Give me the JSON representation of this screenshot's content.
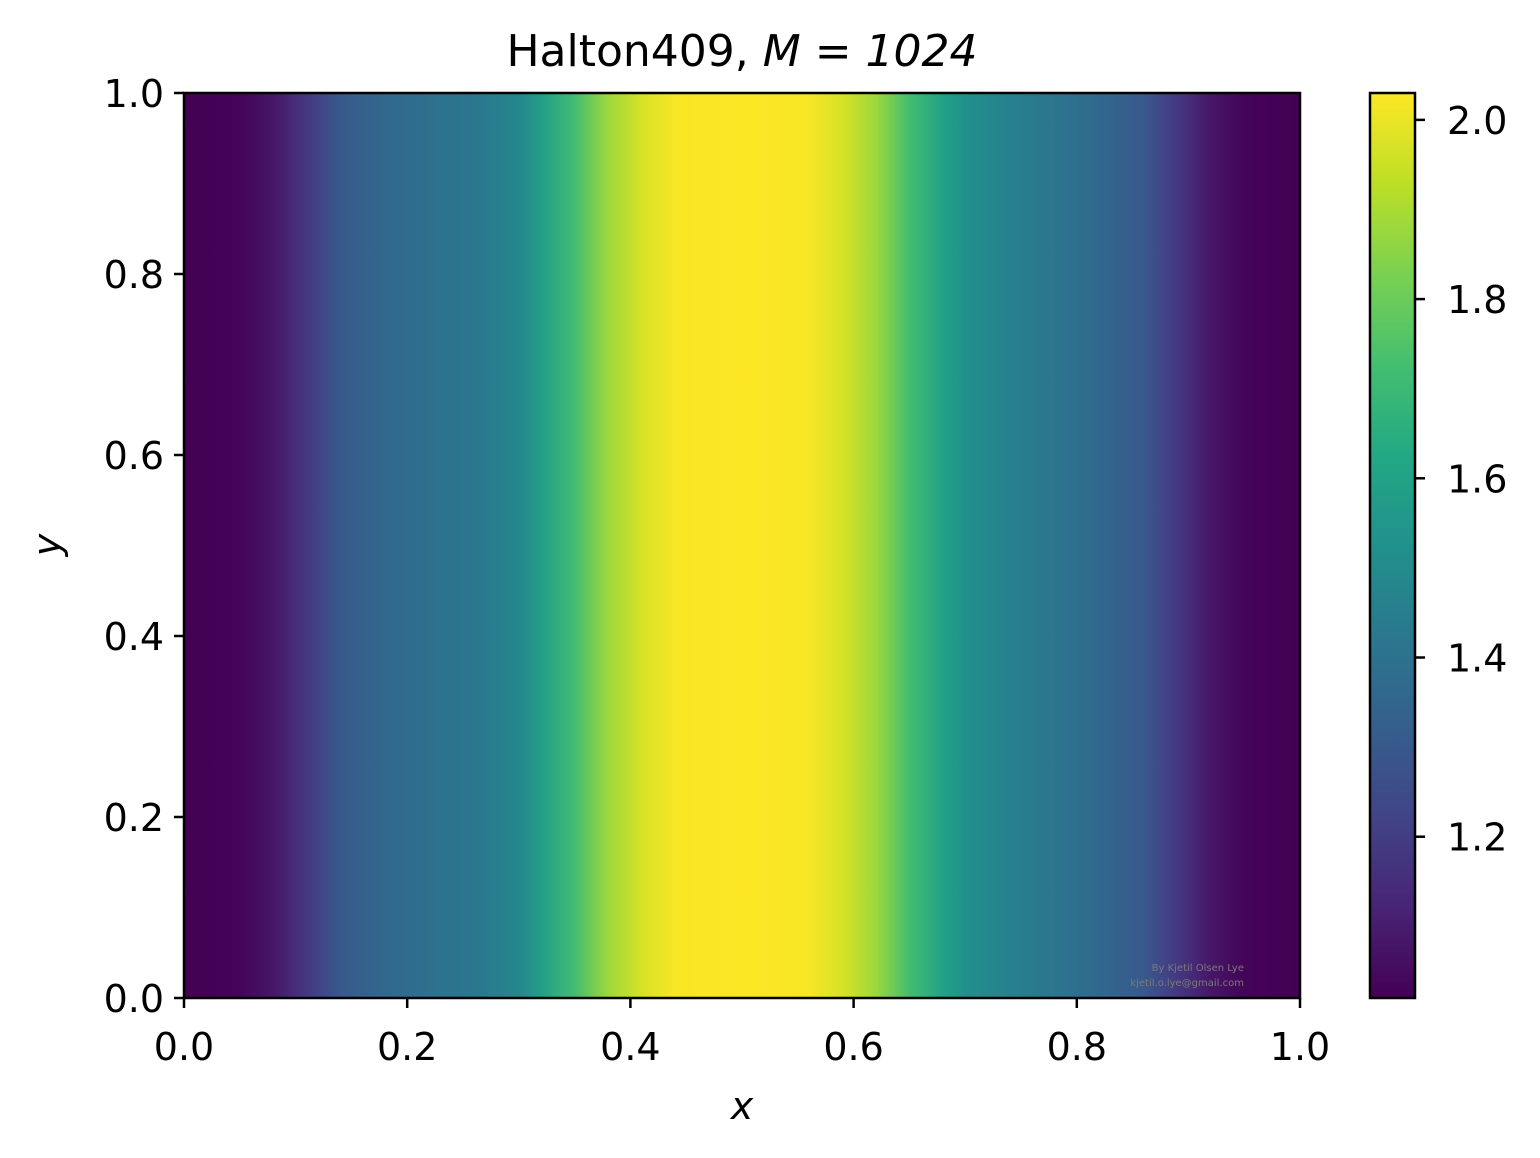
{
  "chart_data": {
    "type": "heatmap",
    "title": "Halton409, ",
    "title_math": "M = 1024",
    "xlabel": "x",
    "ylabel": "y",
    "xlim": [
      0.0,
      1.0
    ],
    "ylim": [
      0.0,
      1.0
    ],
    "xticks": [
      "0.0",
      "0.2",
      "0.4",
      "0.6",
      "0.8",
      "1.0"
    ],
    "yticks": [
      "0.0",
      "0.2",
      "0.4",
      "0.6",
      "0.8",
      "1.0"
    ],
    "colormap": "viridis",
    "colorbar": {
      "vmin": 1.02,
      "vmax": 2.03,
      "ticks": [
        1.2,
        1.4,
        1.6,
        1.8,
        2.0
      ],
      "tick_labels": [
        "1.2",
        "1.4",
        "1.6",
        "1.8",
        "2.0"
      ]
    },
    "profile_note": "value varies along x only (constant in y)",
    "profile_x": [
      0.0,
      0.05,
      0.08,
      0.1,
      0.12,
      0.14,
      0.18,
      0.22,
      0.26,
      0.3,
      0.32,
      0.35,
      0.38,
      0.41,
      0.44,
      0.5,
      0.56,
      0.59,
      0.62,
      0.65,
      0.68,
      0.7,
      0.74,
      0.78,
      0.82,
      0.86,
      0.88,
      0.9,
      0.92,
      0.95,
      1.0
    ],
    "profile_values": [
      1.02,
      1.03,
      1.08,
      1.15,
      1.22,
      1.3,
      1.36,
      1.39,
      1.42,
      1.48,
      1.58,
      1.72,
      1.88,
      1.97,
      2.02,
      2.03,
      2.02,
      1.97,
      1.88,
      1.72,
      1.6,
      1.52,
      1.46,
      1.41,
      1.36,
      1.3,
      1.22,
      1.15,
      1.08,
      1.03,
      1.02
    ],
    "watermark": [
      "By Kjetil Olsen Lye",
      "kjetil.o.lye@gmail.com"
    ]
  }
}
